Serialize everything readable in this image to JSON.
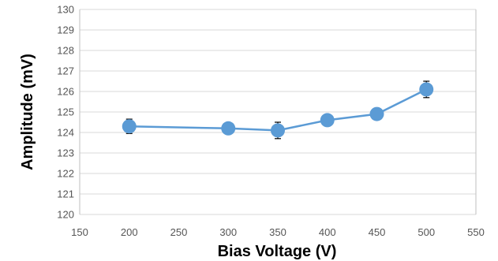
{
  "chart_data": {
    "type": "line",
    "xlabel": "Bias Voltage (V)",
    "ylabel": "Amplitude (mV)",
    "xlim": [
      150,
      550
    ],
    "ylim": [
      120,
      130
    ],
    "x_ticks": [
      150,
      200,
      250,
      300,
      350,
      400,
      450,
      500,
      550
    ],
    "y_ticks": [
      120,
      121,
      122,
      123,
      124,
      125,
      126,
      127,
      128,
      129,
      130
    ],
    "grid": "horizontal",
    "series": [
      {
        "x": [
          200,
          300,
          350,
          400,
          450,
          500
        ],
        "y": [
          124.3,
          124.2,
          124.1,
          124.6,
          124.9,
          126.1
        ],
        "error": [
          0.35,
          0.2,
          0.4,
          0.2,
          0.2,
          0.4
        ],
        "color": "#5b9bd5",
        "marker": "circle"
      }
    ]
  }
}
